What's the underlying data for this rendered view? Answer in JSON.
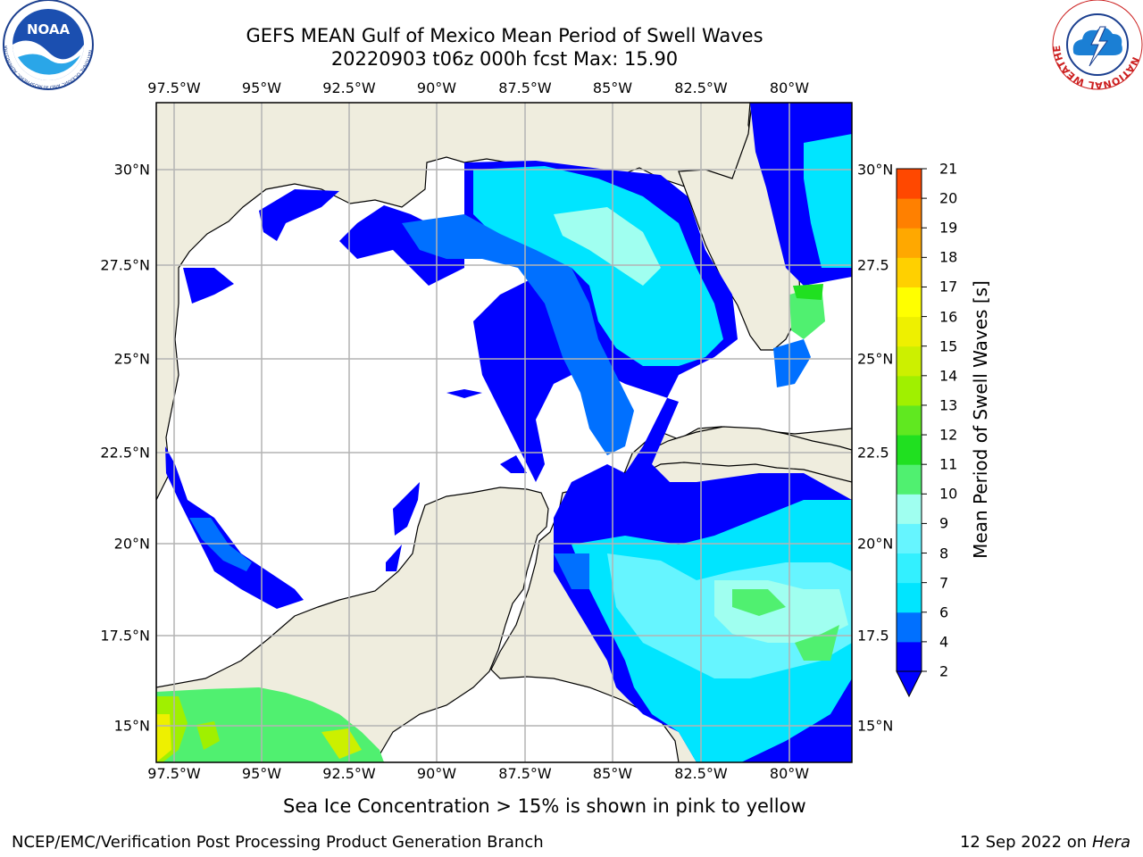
{
  "header": {
    "title_line1": "GEFS MEAN Gulf of Mexico Mean Period of Swell Waves",
    "title_line2": "20220903 t06z 000h fcst   Max: 15.90"
  },
  "logos": {
    "noaa_text": "NOAA",
    "noaa_ring": "NATIONAL OCEANIC AND ATMOSPHERIC ADMINISTRATION · U.S. DEPARTMENT OF COMMERCE",
    "nws_ring": "NATIONAL WEATHER SERVICE"
  },
  "map": {
    "lon_labels": [
      "97.5°W",
      "95°W",
      "92.5°W",
      "90°W",
      "87.5°W",
      "85°W",
      "82.5°W",
      "80°W"
    ],
    "lat_labels_left": [
      "30°N",
      "27.5°N",
      "25°N",
      "22.5°N",
      "20°N",
      "17.5°N",
      "15°N"
    ],
    "lat_labels_right": [
      "30°N",
      "27.5",
      "25°N",
      "22.5",
      "20°N",
      "17.5",
      "15°N"
    ],
    "colors": {
      "land": "#efedde",
      "ocean": "#ffffff",
      "grid": "#b4b4b4"
    }
  },
  "colorbar": {
    "label": "Mean Period of Swell Waves [s]",
    "ticks": [
      "2",
      "4",
      "6",
      "7",
      "8",
      "9",
      "10",
      "11",
      "12",
      "13",
      "14",
      "15",
      "16",
      "17",
      "18",
      "19",
      "20",
      "21"
    ],
    "colors": [
      "#0000ff",
      "#0070ff",
      "#00e5ff",
      "#33f0ff",
      "#66f5ff",
      "#a0fff0",
      "#50f070",
      "#20e020",
      "#60e820",
      "#a0f000",
      "#ccf000",
      "#eef000",
      "#ffff00",
      "#ffd000",
      "#ffa800",
      "#ff8000",
      "#ff4800",
      "#ff1800",
      "#ff0000"
    ]
  },
  "note": "Sea Ice Concentration > 15% is shown in pink to yellow",
  "footer": {
    "left": "NCEP/EMC/Verification Post Processing Product Generation Branch",
    "right_date": "12 Sep 2022 on",
    "right_host": "Hera"
  }
}
